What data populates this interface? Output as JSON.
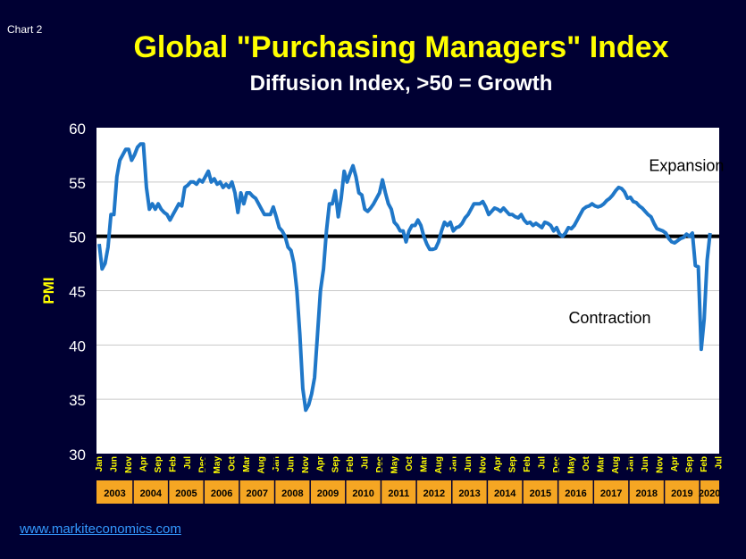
{
  "header": {
    "chart_number": "Chart 2",
    "title": "Global \"Purchasing Managers\" Index",
    "subtitle": "Diffusion Index, >50 = Growth"
  },
  "footer": {
    "source": "www.markiteconomics.com"
  },
  "colors": {
    "background": "#000033",
    "title": "#ffff00",
    "series": "#1f77c8",
    "plot_area": "#ffffff",
    "threshold": "#000000",
    "year_band": "#f5a623",
    "link": "#3399ff"
  },
  "chart_data": {
    "type": "line",
    "title": "Global \"Purchasing Managers\" Index",
    "subtitle": "Diffusion Index, >50 = Growth",
    "xlabel": "",
    "ylabel": "PMI",
    "ylim": [
      30,
      60
    ],
    "yticks": [
      30,
      35,
      40,
      45,
      50,
      55,
      60
    ],
    "grid": true,
    "threshold": 50,
    "annotations": [
      {
        "text": "Expansion",
        "x": "2019-08",
        "y": 56
      },
      {
        "text": "Contraction",
        "x": "2017-06",
        "y": 42
      }
    ],
    "years": [
      "2003",
      "2004",
      "2005",
      "2006",
      "2007",
      "2008",
      "2009",
      "2010",
      "2011",
      "2012",
      "2013",
      "2014",
      "2015",
      "2016",
      "2017",
      "2018",
      "2019",
      "2020"
    ],
    "month_tick_labels": [
      {
        "label": "Jan",
        "x": "2003-01"
      },
      {
        "label": "Jun",
        "x": "2003-06"
      },
      {
        "label": "Nov",
        "x": "2003-11"
      },
      {
        "label": "Apr",
        "x": "2004-04"
      },
      {
        "label": "Sep",
        "x": "2004-09"
      },
      {
        "label": "Feb",
        "x": "2005-02"
      },
      {
        "label": "Jul",
        "x": "2005-07"
      },
      {
        "label": "Dec",
        "x": "2005-12"
      },
      {
        "label": "May",
        "x": "2006-05"
      },
      {
        "label": "Oct",
        "x": "2006-10"
      },
      {
        "label": "Mar",
        "x": "2007-03"
      },
      {
        "label": "Aug",
        "x": "2007-08"
      },
      {
        "label": "Jan",
        "x": "2008-01"
      },
      {
        "label": "Jun",
        "x": "2008-06"
      },
      {
        "label": "Nov",
        "x": "2008-11"
      },
      {
        "label": "Apr",
        "x": "2009-04"
      },
      {
        "label": "Sep",
        "x": "2009-09"
      },
      {
        "label": "Feb",
        "x": "2010-02"
      },
      {
        "label": "Jul",
        "x": "2010-07"
      },
      {
        "label": "Dec",
        "x": "2010-12"
      },
      {
        "label": "May",
        "x": "2011-05"
      },
      {
        "label": "Oct",
        "x": "2011-10"
      },
      {
        "label": "Mar",
        "x": "2012-03"
      },
      {
        "label": "Aug",
        "x": "2012-08"
      },
      {
        "label": "Jan",
        "x": "2013-01"
      },
      {
        "label": "Jun",
        "x": "2013-06"
      },
      {
        "label": "Nov",
        "x": "2013-11"
      },
      {
        "label": "Apr",
        "x": "2014-04"
      },
      {
        "label": "Sep",
        "x": "2014-09"
      },
      {
        "label": "Feb",
        "x": "2015-02"
      },
      {
        "label": "Jul",
        "x": "2015-07"
      },
      {
        "label": "Dec",
        "x": "2015-12"
      },
      {
        "label": "May",
        "x": "2016-05"
      },
      {
        "label": "Oct",
        "x": "2016-10"
      },
      {
        "label": "Mar",
        "x": "2017-03"
      },
      {
        "label": "Aug",
        "x": "2017-08"
      },
      {
        "label": "Jan",
        "x": "2018-01"
      },
      {
        "label": "Jun",
        "x": "2018-06"
      },
      {
        "label": "Nov",
        "x": "2018-11"
      },
      {
        "label": "Apr",
        "x": "2019-04"
      },
      {
        "label": "Sep",
        "x": "2019-09"
      },
      {
        "label": "Feb",
        "x": "2020-02"
      },
      {
        "label": "Jul",
        "x": "2020-07"
      }
    ],
    "series": [
      {
        "points": [
          [
            "2003-01",
            49.3
          ],
          [
            "2003-02",
            47.0
          ],
          [
            "2003-03",
            47.5
          ],
          [
            "2003-04",
            49.0
          ],
          [
            "2003-05",
            52.0
          ],
          [
            "2003-06",
            52.0
          ],
          [
            "2003-07",
            55.5
          ],
          [
            "2003-08",
            57.0
          ],
          [
            "2003-09",
            57.5
          ],
          [
            "2003-10",
            58.0
          ],
          [
            "2003-11",
            58.0
          ],
          [
            "2003-12",
            57.0
          ],
          [
            "2004-01",
            57.5
          ],
          [
            "2004-02",
            58.2
          ],
          [
            "2004-03",
            58.5
          ],
          [
            "2004-04",
            58.5
          ],
          [
            "2004-05",
            54.5
          ],
          [
            "2004-06",
            52.5
          ],
          [
            "2004-07",
            53.0
          ],
          [
            "2004-08",
            52.5
          ],
          [
            "2004-09",
            53.0
          ],
          [
            "2004-10",
            52.5
          ],
          [
            "2004-11",
            52.2
          ],
          [
            "2004-12",
            52.0
          ],
          [
            "2005-01",
            51.5
          ],
          [
            "2005-02",
            52.0
          ],
          [
            "2005-03",
            52.5
          ],
          [
            "2005-04",
            53.0
          ],
          [
            "2005-05",
            52.8
          ],
          [
            "2005-06",
            54.5
          ],
          [
            "2005-07",
            54.7
          ],
          [
            "2005-08",
            55.0
          ],
          [
            "2005-09",
            55.0
          ],
          [
            "2005-10",
            54.8
          ],
          [
            "2005-11",
            55.2
          ],
          [
            "2005-12",
            55.0
          ],
          [
            "2006-01",
            55.5
          ],
          [
            "2006-02",
            56.0
          ],
          [
            "2006-03",
            55.0
          ],
          [
            "2006-04",
            55.3
          ],
          [
            "2006-05",
            54.8
          ],
          [
            "2006-06",
            55.0
          ],
          [
            "2006-07",
            54.5
          ],
          [
            "2006-08",
            54.8
          ],
          [
            "2006-09",
            54.5
          ],
          [
            "2006-10",
            55.0
          ],
          [
            "2006-11",
            54.0
          ],
          [
            "2006-12",
            52.2
          ],
          [
            "2007-01",
            54.0
          ],
          [
            "2007-02",
            53.0
          ],
          [
            "2007-03",
            54.0
          ],
          [
            "2007-04",
            54.0
          ],
          [
            "2007-05",
            53.7
          ],
          [
            "2007-06",
            53.5
          ],
          [
            "2007-07",
            53.0
          ],
          [
            "2007-08",
            52.5
          ],
          [
            "2007-09",
            52.0
          ],
          [
            "2007-10",
            52.0
          ],
          [
            "2007-11",
            52.0
          ],
          [
            "2007-12",
            52.7
          ],
          [
            "2008-01",
            51.8
          ],
          [
            "2008-02",
            50.8
          ],
          [
            "2008-03",
            50.5
          ],
          [
            "2008-04",
            50.0
          ],
          [
            "2008-05",
            49.0
          ],
          [
            "2008-06",
            48.7
          ],
          [
            "2008-07",
            47.5
          ],
          [
            "2008-08",
            45.0
          ],
          [
            "2008-09",
            41.0
          ],
          [
            "2008-10",
            36.0
          ],
          [
            "2008-11",
            34.0
          ],
          [
            "2008-12",
            34.5
          ],
          [
            "2009-01",
            35.5
          ],
          [
            "2009-02",
            37.0
          ],
          [
            "2009-03",
            41.0
          ],
          [
            "2009-04",
            45.0
          ],
          [
            "2009-05",
            47.0
          ],
          [
            "2009-06",
            50.5
          ],
          [
            "2009-07",
            53.0
          ],
          [
            "2009-08",
            53.0
          ],
          [
            "2009-09",
            54.2
          ],
          [
            "2009-10",
            51.8
          ],
          [
            "2009-11",
            53.5
          ],
          [
            "2009-12",
            56.0
          ],
          [
            "2010-01",
            55.0
          ],
          [
            "2010-02",
            55.8
          ],
          [
            "2010-03",
            56.5
          ],
          [
            "2010-04",
            55.5
          ],
          [
            "2010-05",
            54.0
          ],
          [
            "2010-06",
            53.8
          ],
          [
            "2010-07",
            52.5
          ],
          [
            "2010-08",
            52.3
          ],
          [
            "2010-09",
            52.6
          ],
          [
            "2010-10",
            53.0
          ],
          [
            "2010-11",
            53.5
          ],
          [
            "2010-12",
            54.0
          ],
          [
            "2011-01",
            55.2
          ],
          [
            "2011-02",
            54.0
          ],
          [
            "2011-03",
            53.0
          ],
          [
            "2011-04",
            52.5
          ],
          [
            "2011-05",
            51.3
          ],
          [
            "2011-06",
            51.0
          ],
          [
            "2011-07",
            50.5
          ],
          [
            "2011-08",
            50.5
          ],
          [
            "2011-09",
            49.5
          ],
          [
            "2011-10",
            50.5
          ],
          [
            "2011-11",
            51.0
          ],
          [
            "2011-12",
            51.0
          ],
          [
            "2012-01",
            51.5
          ],
          [
            "2012-02",
            51.0
          ],
          [
            "2012-03",
            50.0
          ],
          [
            "2012-04",
            49.3
          ],
          [
            "2012-05",
            48.8
          ],
          [
            "2012-06",
            48.8
          ],
          [
            "2012-07",
            48.9
          ],
          [
            "2012-08",
            49.5
          ],
          [
            "2012-09",
            50.5
          ],
          [
            "2012-10",
            51.3
          ],
          [
            "2012-11",
            51.0
          ],
          [
            "2012-12",
            51.3
          ],
          [
            "2013-01",
            50.5
          ],
          [
            "2013-02",
            50.8
          ],
          [
            "2013-03",
            50.9
          ],
          [
            "2013-04",
            51.2
          ],
          [
            "2013-05",
            51.7
          ],
          [
            "2013-06",
            52.0
          ],
          [
            "2013-07",
            52.5
          ],
          [
            "2013-08",
            53.0
          ],
          [
            "2013-09",
            53.0
          ],
          [
            "2013-10",
            53.0
          ],
          [
            "2013-11",
            53.2
          ],
          [
            "2013-12",
            52.7
          ],
          [
            "2014-01",
            52.0
          ],
          [
            "2014-02",
            52.3
          ],
          [
            "2014-03",
            52.6
          ],
          [
            "2014-04",
            52.5
          ],
          [
            "2014-05",
            52.3
          ],
          [
            "2014-06",
            52.6
          ],
          [
            "2014-07",
            52.3
          ],
          [
            "2014-08",
            52.0
          ],
          [
            "2014-09",
            52.0
          ],
          [
            "2014-10",
            51.8
          ],
          [
            "2014-11",
            51.7
          ],
          [
            "2014-12",
            52.0
          ],
          [
            "2015-01",
            51.5
          ],
          [
            "2015-02",
            51.2
          ],
          [
            "2015-03",
            51.3
          ],
          [
            "2015-04",
            51.0
          ],
          [
            "2015-05",
            51.2
          ],
          [
            "2015-06",
            51.0
          ],
          [
            "2015-07",
            50.8
          ],
          [
            "2015-08",
            51.3
          ],
          [
            "2015-09",
            51.2
          ],
          [
            "2015-10",
            51.0
          ],
          [
            "2015-11",
            50.5
          ],
          [
            "2015-12",
            50.8
          ],
          [
            "2016-01",
            50.2
          ],
          [
            "2016-02",
            50.0
          ],
          [
            "2016-03",
            50.3
          ],
          [
            "2016-04",
            50.8
          ],
          [
            "2016-05",
            50.7
          ],
          [
            "2016-06",
            51.0
          ],
          [
            "2016-07",
            51.5
          ],
          [
            "2016-08",
            52.0
          ],
          [
            "2016-09",
            52.5
          ],
          [
            "2016-10",
            52.7
          ],
          [
            "2016-11",
            52.8
          ],
          [
            "2016-12",
            53.0
          ],
          [
            "2017-01",
            52.8
          ],
          [
            "2017-02",
            52.7
          ],
          [
            "2017-03",
            52.8
          ],
          [
            "2017-04",
            53.0
          ],
          [
            "2017-05",
            53.3
          ],
          [
            "2017-06",
            53.5
          ],
          [
            "2017-07",
            53.8
          ],
          [
            "2017-08",
            54.2
          ],
          [
            "2017-09",
            54.5
          ],
          [
            "2017-10",
            54.4
          ],
          [
            "2017-11",
            54.1
          ],
          [
            "2017-12",
            53.5
          ],
          [
            "2018-01",
            53.6
          ],
          [
            "2018-02",
            53.2
          ],
          [
            "2018-03",
            53.1
          ],
          [
            "2018-04",
            52.8
          ],
          [
            "2018-05",
            52.6
          ],
          [
            "2018-06",
            52.3
          ],
          [
            "2018-07",
            52.0
          ],
          [
            "2018-08",
            51.8
          ],
          [
            "2018-09",
            51.2
          ],
          [
            "2018-10",
            50.7
          ],
          [
            "2018-11",
            50.6
          ],
          [
            "2018-12",
            50.5
          ],
          [
            "2019-01",
            50.3
          ],
          [
            "2019-02",
            49.8
          ],
          [
            "2019-03",
            49.5
          ],
          [
            "2019-04",
            49.4
          ],
          [
            "2019-05",
            49.6
          ],
          [
            "2019-06",
            49.8
          ],
          [
            "2019-07",
            49.9
          ],
          [
            "2019-08",
            50.2
          ],
          [
            "2019-09",
            50.0
          ],
          [
            "2019-10",
            50.3
          ],
          [
            "2019-11",
            47.3
          ],
          [
            "2019-12",
            47.2
          ],
          [
            "2020-01",
            39.6
          ],
          [
            "2020-02",
            42.4
          ],
          [
            "2020-03",
            47.8
          ],
          [
            "2020-04",
            50.3
          ]
        ]
      }
    ]
  }
}
